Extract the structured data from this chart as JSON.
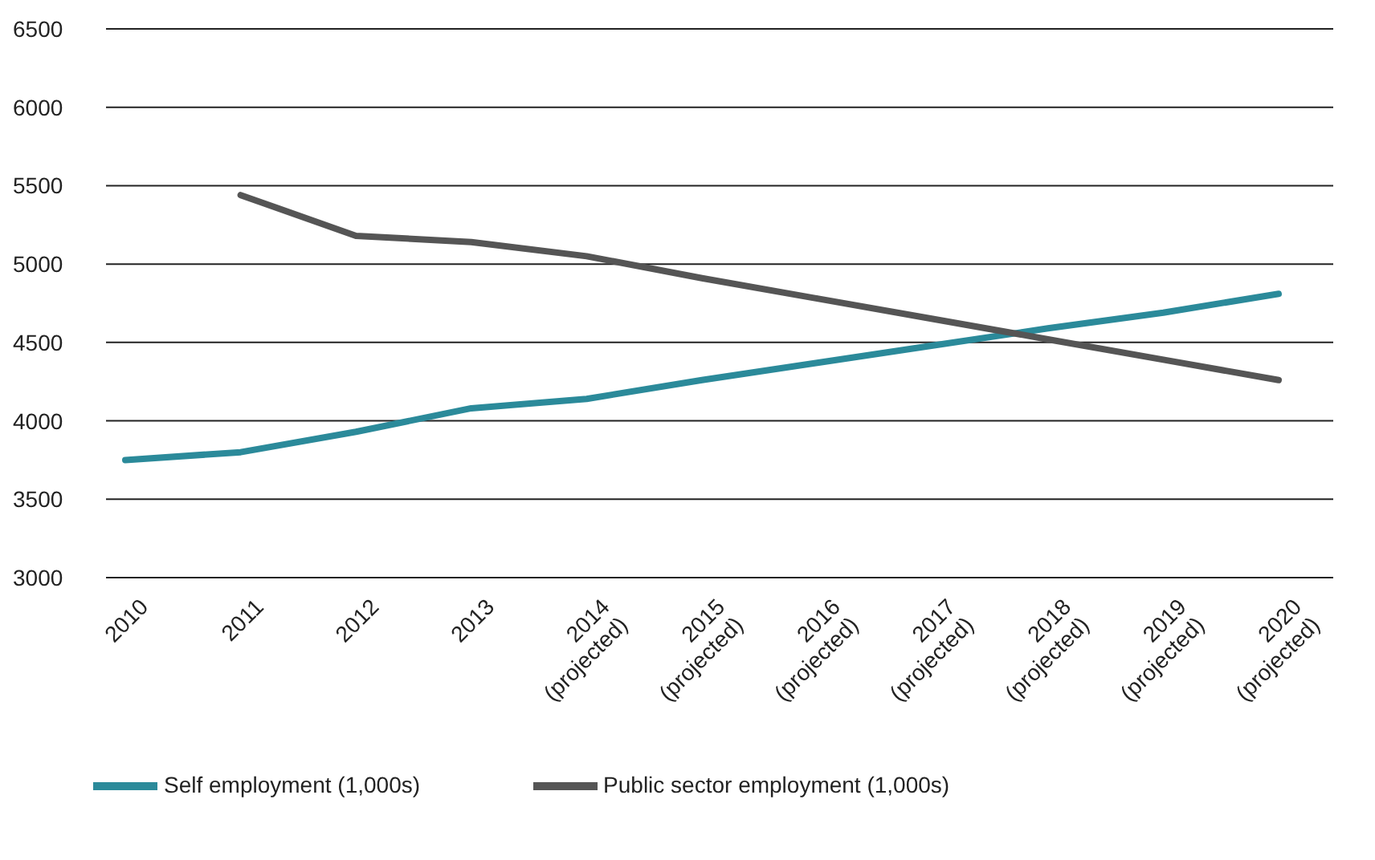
{
  "chart_data": {
    "type": "line",
    "categories": [
      "2010",
      "2011",
      "2012",
      "2013",
      "2014\n(projected)",
      "2015\n(projected)",
      "2016\n(projected)",
      "2017\n(projected)",
      "2018\n(projected)",
      "2019\n(projected)",
      "2020\n(projected)"
    ],
    "series": [
      {
        "name": "Self employment (1,000s)",
        "color": "#2b8a9a",
        "values": [
          3750,
          3800,
          3930,
          4080,
          4140,
          4260,
          4370,
          4480,
          4590,
          4690,
          4810
        ]
      },
      {
        "name": "Public sector employment (1,000s)",
        "color": "#555555",
        "values": [
          null,
          5440,
          5180,
          5140,
          5050,
          4910,
          4780,
          4650,
          4520,
          4390,
          4260
        ]
      }
    ],
    "ylim": [
      3000,
      6500
    ],
    "yticks": [
      3000,
      3500,
      4000,
      4500,
      5000,
      5500,
      6000,
      6500
    ],
    "grid": "y",
    "legend": "bottom left",
    "marker": "none",
    "line_style": "solid"
  }
}
